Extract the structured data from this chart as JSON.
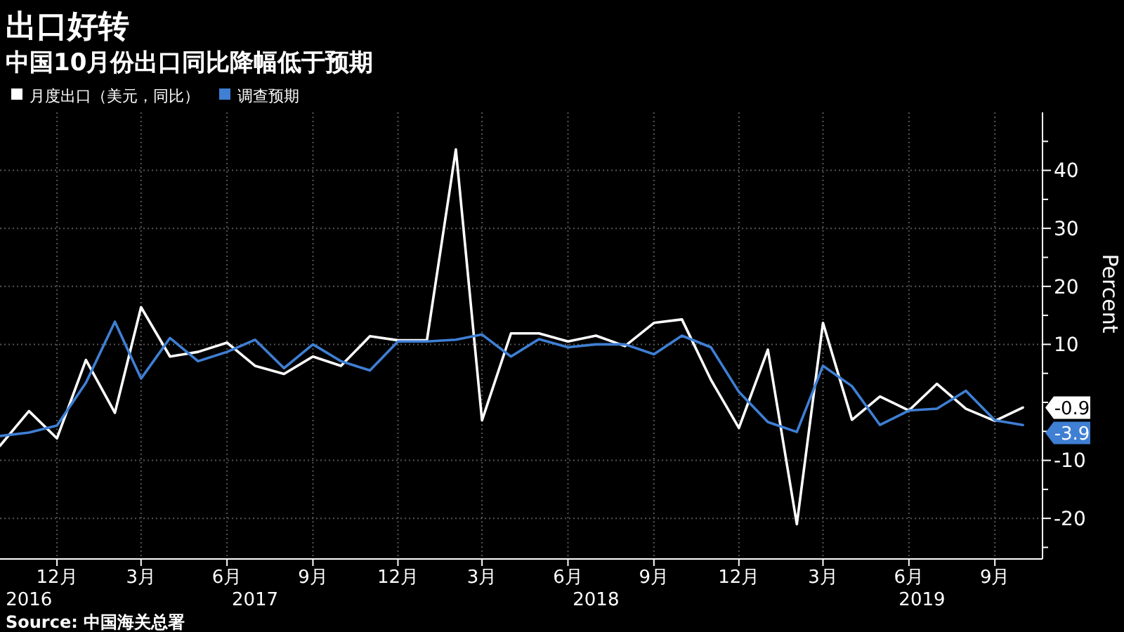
{
  "chart_data": {
    "type": "line",
    "title": "出口好转",
    "subtitle": "中国10月份出口同比降幅低于预期",
    "ylabel": "Percent",
    "x": [
      "2016-10",
      "2016-11",
      "2016-12",
      "2017-01",
      "2017-02",
      "2017-03",
      "2017-04",
      "2017-05",
      "2017-06",
      "2017-07",
      "2017-08",
      "2017-09",
      "2017-10",
      "2017-11",
      "2017-12",
      "2018-01",
      "2018-02",
      "2018-03",
      "2018-04",
      "2018-05",
      "2018-06",
      "2018-07",
      "2018-08",
      "2018-09",
      "2018-10",
      "2018-11",
      "2018-12",
      "2019-01",
      "2019-02",
      "2019-03",
      "2019-04",
      "2019-05",
      "2019-06",
      "2019-07",
      "2019-08",
      "2019-09",
      "2019-10"
    ],
    "series": [
      {
        "name": "月度出口（美元，同比）",
        "color": "#ffffff",
        "values": [
          -7.5,
          -1.5,
          -6.2,
          7.3,
          -1.8,
          16.4,
          7.9,
          8.7,
          10.3,
          6.3,
          4.9,
          7.9,
          6.3,
          11.4,
          10.7,
          10.7,
          43.6,
          -3.1,
          11.9,
          11.9,
          10.5,
          11.5,
          9.7,
          13.7,
          14.3,
          3.9,
          -4.4,
          9.1,
          -21.0,
          13.7,
          -3.0,
          1.0,
          -1.4,
          3.2,
          -1.1,
          -3.2,
          -0.9
        ],
        "value_labels": [
          null,
          null,
          null,
          null,
          null,
          null,
          null,
          null,
          null,
          null,
          null,
          null,
          null,
          null,
          null,
          null,
          null,
          null,
          null,
          null,
          null,
          null,
          null,
          null,
          null,
          null,
          null,
          null,
          null,
          null,
          null,
          null,
          null,
          null,
          null,
          null,
          "-0.9"
        ]
      },
      {
        "name": "调查预期",
        "color": "#3f7fd4",
        "values": [
          -5.8,
          -5.2,
          -4.0,
          3.4,
          13.9,
          4.1,
          11.1,
          7.1,
          8.7,
          10.8,
          5.9,
          10.0,
          7.1,
          5.5,
          10.5,
          10.5,
          10.8,
          11.7,
          7.9,
          10.9,
          9.5,
          10.0,
          10.0,
          8.3,
          11.5,
          9.5,
          1.8,
          -3.4,
          -5.1,
          6.3,
          2.8,
          -3.9,
          -1.4,
          -1.1,
          2.0,
          -3.1,
          -3.9
        ],
        "value_labels": [
          null,
          null,
          null,
          null,
          null,
          null,
          null,
          null,
          null,
          null,
          null,
          null,
          null,
          null,
          null,
          null,
          null,
          null,
          null,
          null,
          null,
          null,
          null,
          null,
          null,
          null,
          null,
          null,
          null,
          null,
          null,
          null,
          null,
          null,
          null,
          null,
          "-3.9"
        ]
      }
    ],
    "xlim": [
      "2016-10-01",
      "2019-10-22"
    ],
    "xticks": [
      {
        "value": "2016-12",
        "label": "12月"
      },
      {
        "value": "2017-03",
        "label": "3月"
      },
      {
        "value": "2017-06",
        "label": "6月"
      },
      {
        "value": "2017-09",
        "label": "9月"
      },
      {
        "value": "2017-12",
        "label": "12月"
      },
      {
        "value": "2018-03",
        "label": "3月"
      },
      {
        "value": "2018-06",
        "label": "6月"
      },
      {
        "value": "2018-09",
        "label": "9月"
      },
      {
        "value": "2018-12",
        "label": "12月"
      },
      {
        "value": "2019-03",
        "label": "3月"
      },
      {
        "value": "2019-06",
        "label": "6月"
      },
      {
        "value": "2019-09",
        "label": "9月"
      }
    ],
    "x2lim": [
      "2016-10-01",
      "2019-10-22"
    ],
    "x2ticks": [
      {
        "value": "2016-11-01",
        "label": "2016"
      },
      {
        "value": "2017-07-01",
        "label": "2017"
      },
      {
        "value": "2018-07-01",
        "label": "2018"
      },
      {
        "value": "2019-06-15",
        "label": "2019"
      }
    ],
    "ylim": [
      -27,
      50
    ],
    "yticks": [
      {
        "value": -25,
        "label": null
      },
      -20,
      {
        "value": -15,
        "label": null
      },
      -10,
      {
        "value": -5,
        "label": null
      },
      {
        "value": 0,
        "label": null
      },
      {
        "value": 5,
        "label": null
      },
      10,
      {
        "value": 15,
        "label": null
      },
      20,
      {
        "value": 25,
        "label": null
      },
      30,
      {
        "value": 35,
        "label": null
      },
      40,
      {
        "value": 45,
        "label": null
      }
    ],
    "grid": true,
    "legend": "top left",
    "line_style": "solid",
    "marker": "none",
    "annotations": [
      "Source: 中国海关总署"
    ]
  }
}
